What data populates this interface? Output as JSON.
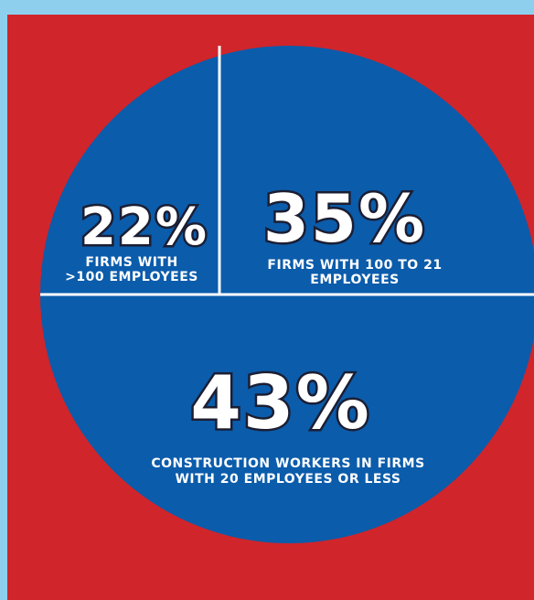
{
  "chart_data": {
    "type": "pie",
    "slices": [
      {
        "value": 22,
        "percent_label": "22%",
        "label_lines": [
          "FIRMS WITH",
          ">100 EMPLOYEES"
        ]
      },
      {
        "value": 35,
        "percent_label": "35%",
        "label_lines": [
          "FIRMS WITH 100 TO 21",
          "EMPLOYEES"
        ]
      },
      {
        "value": 43,
        "percent_label": "43%",
        "label_lines": [
          "CONSTRUCTION WORKERS IN FIRMS",
          "WITH 20 EMPLOYEES OR LESS"
        ]
      }
    ]
  },
  "colors": {
    "background_border": "#8ecfee",
    "panel": "#d0252b",
    "pie": "#0b5cab",
    "divider": "#ffffff",
    "text": "#ffffff",
    "text_outline": "#1b1e33"
  }
}
